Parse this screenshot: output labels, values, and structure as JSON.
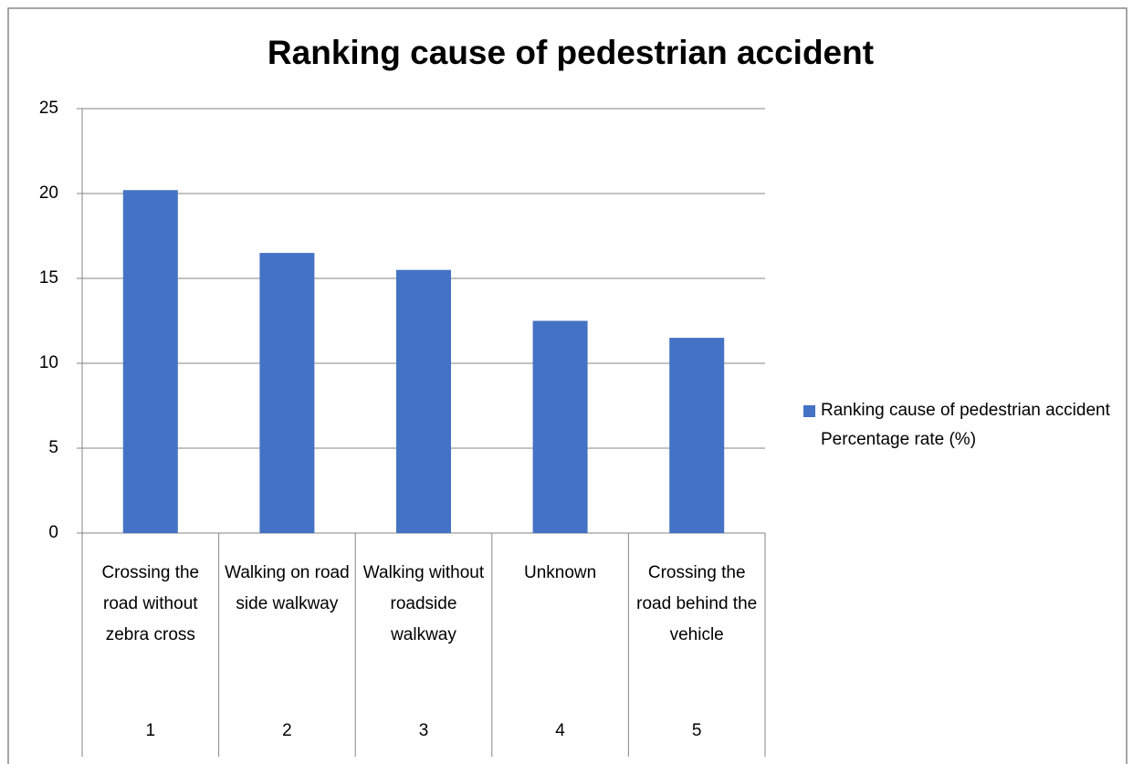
{
  "chart_data": {
    "type": "bar",
    "title": "Ranking cause of pedestrian accident",
    "categories": [
      "Crossing the road without zebra cross",
      "Walking on road side walkway",
      "Walking without roadside walkway",
      "Unknown",
      "Crossing the road behind the vehicle"
    ],
    "category_ranks": [
      1,
      2,
      3,
      4,
      5
    ],
    "series": [
      {
        "name": "Ranking cause of pedestrian accident Percentage rate (%)",
        "color": "#4472c4",
        "values": [
          20.2,
          16.5,
          15.5,
          12.5,
          11.5
        ]
      }
    ],
    "ylim": [
      0,
      25
    ],
    "yticks": [
      0,
      5,
      10,
      15,
      20,
      25
    ],
    "grid": true,
    "legend": "right"
  }
}
